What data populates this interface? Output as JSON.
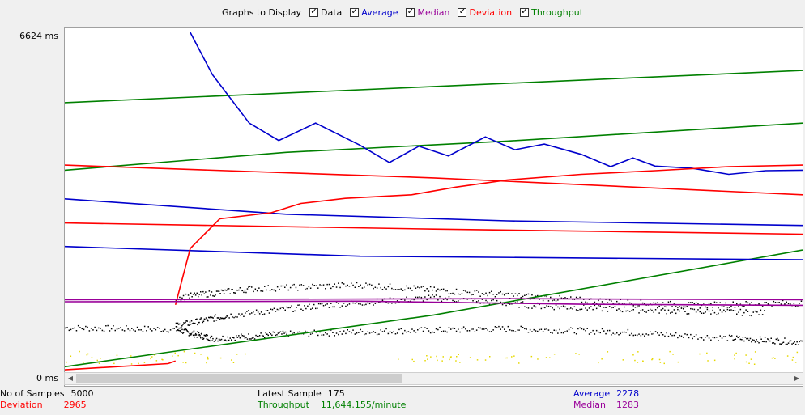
{
  "legend": {
    "title": "Graphs to Display",
    "items": [
      {
        "label": "Data",
        "checked": true,
        "color": "#000000"
      },
      {
        "label": "Average",
        "checked": true,
        "color": "#0000cc"
      },
      {
        "label": "Median",
        "checked": true,
        "color": "#990099"
      },
      {
        "label": "Deviation",
        "checked": true,
        "color": "#ff0000"
      },
      {
        "label": "Throughput",
        "checked": true,
        "color": "#008000"
      }
    ]
  },
  "axis": {
    "y_max_label": "6624  ms",
    "y_min_label": "0  ms"
  },
  "stats": {
    "samples_label": "No of Samples",
    "samples_value": "5000",
    "deviation_label": "Deviation",
    "deviation_value": "2965",
    "latest_label": "Latest Sample",
    "latest_value": "175",
    "throughput_label": "Throughput",
    "throughput_value": "11,644.155/minute",
    "average_label": "Average",
    "average_value": "2278",
    "median_label": "Median",
    "median_value": "1283"
  },
  "colors": {
    "data": "#000000",
    "average": "#0000cc",
    "median": "#990099",
    "deviation": "#ff0000",
    "throughput": "#008000",
    "yellow": "#ffff00"
  },
  "chart_data": {
    "type": "line",
    "title": "Graphs to Display",
    "ylim": [
      0,
      6624
    ],
    "y_unit": "ms",
    "x_range": [
      0,
      100
    ],
    "series": [
      {
        "name": "Throughput",
        "color": "#008000",
        "points": [
          [
            0,
            5250
          ],
          [
            100,
            5880
          ]
        ]
      },
      {
        "name": "Throughput",
        "color": "#008000",
        "points": [
          [
            0,
            3930
          ],
          [
            30,
            4280
          ],
          [
            60,
            4500
          ],
          [
            100,
            4850
          ]
        ]
      },
      {
        "name": "Throughput",
        "color": "#008000",
        "points": [
          [
            0,
            90
          ],
          [
            50,
            1100
          ],
          [
            100,
            2370
          ]
        ]
      },
      {
        "name": "Average",
        "color": "#0000cc",
        "points": [
          [
            17,
            6624
          ],
          [
            20,
            5800
          ],
          [
            25,
            4850
          ],
          [
            29,
            4510
          ],
          [
            34,
            4850
          ],
          [
            40,
            4420
          ],
          [
            44,
            4080
          ],
          [
            48,
            4400
          ],
          [
            52,
            4210
          ],
          [
            57,
            4580
          ],
          [
            61,
            4330
          ],
          [
            65,
            4440
          ],
          [
            70,
            4240
          ],
          [
            74,
            4000
          ],
          [
            77,
            4170
          ],
          [
            80,
            4010
          ],
          [
            85,
            3970
          ],
          [
            90,
            3850
          ],
          [
            95,
            3920
          ],
          [
            100,
            3930
          ]
        ]
      },
      {
        "name": "Average",
        "color": "#0000cc",
        "points": [
          [
            0,
            3370
          ],
          [
            30,
            3070
          ],
          [
            60,
            2940
          ],
          [
            100,
            2850
          ]
        ]
      },
      {
        "name": "Average",
        "color": "#0000cc",
        "points": [
          [
            0,
            2440
          ],
          [
            40,
            2250
          ],
          [
            100,
            2180
          ]
        ]
      },
      {
        "name": "Deviation",
        "color": "#ff0000",
        "points": [
          [
            0,
            4030
          ],
          [
            50,
            3780
          ],
          [
            100,
            3450
          ]
        ]
      },
      {
        "name": "Deviation",
        "color": "#ff0000",
        "points": [
          [
            0,
            2900
          ],
          [
            50,
            2780
          ],
          [
            100,
            2680
          ]
        ]
      },
      {
        "name": "Deviation",
        "color": "#ff0000",
        "points": [
          [
            0,
            30
          ],
          [
            14,
            150
          ],
          [
            15,
            200
          ]
        ]
      },
      {
        "name": "Deviation",
        "color": "#ff0000",
        "points": [
          [
            15,
            1300
          ],
          [
            17,
            2400
          ],
          [
            21,
            2980
          ],
          [
            28,
            3100
          ],
          [
            32,
            3280
          ],
          [
            38,
            3380
          ],
          [
            47,
            3450
          ],
          [
            53,
            3600
          ],
          [
            60,
            3740
          ],
          [
            70,
            3850
          ],
          [
            80,
            3920
          ],
          [
            90,
            4000
          ],
          [
            100,
            4030
          ]
        ]
      },
      {
        "name": "Median",
        "color": "#990099",
        "points": [
          [
            0,
            1360
          ],
          [
            40,
            1370
          ],
          [
            70,
            1310
          ],
          [
            100,
            1290
          ]
        ]
      },
      {
        "name": "Median",
        "color": "#990099",
        "points": [
          [
            0,
            1400
          ],
          [
            60,
            1420
          ],
          [
            100,
            1400
          ]
        ]
      },
      {
        "name": "Data",
        "color": "#000000",
        "points": [
          [
            0,
            860
          ],
          [
            15,
            830
          ],
          [
            20,
            650
          ],
          [
            30,
            740
          ],
          [
            45,
            800
          ],
          [
            60,
            840
          ],
          [
            75,
            780
          ],
          [
            90,
            660
          ],
          [
            100,
            580
          ]
        ]
      },
      {
        "name": "Data",
        "color": "#000000",
        "points": [
          [
            15,
            900
          ],
          [
            22,
            1100
          ],
          [
            35,
            1300
          ],
          [
            50,
            1450
          ],
          [
            65,
            1280
          ],
          [
            80,
            1200
          ],
          [
            95,
            1150
          ]
        ]
      },
      {
        "name": "Data",
        "color": "#000000",
        "points": [
          [
            15,
            1450
          ],
          [
            25,
            1620
          ],
          [
            40,
            1700
          ],
          [
            55,
            1550
          ],
          [
            70,
            1400
          ],
          [
            85,
            1300
          ],
          [
            100,
            1350
          ]
        ]
      }
    ]
  }
}
